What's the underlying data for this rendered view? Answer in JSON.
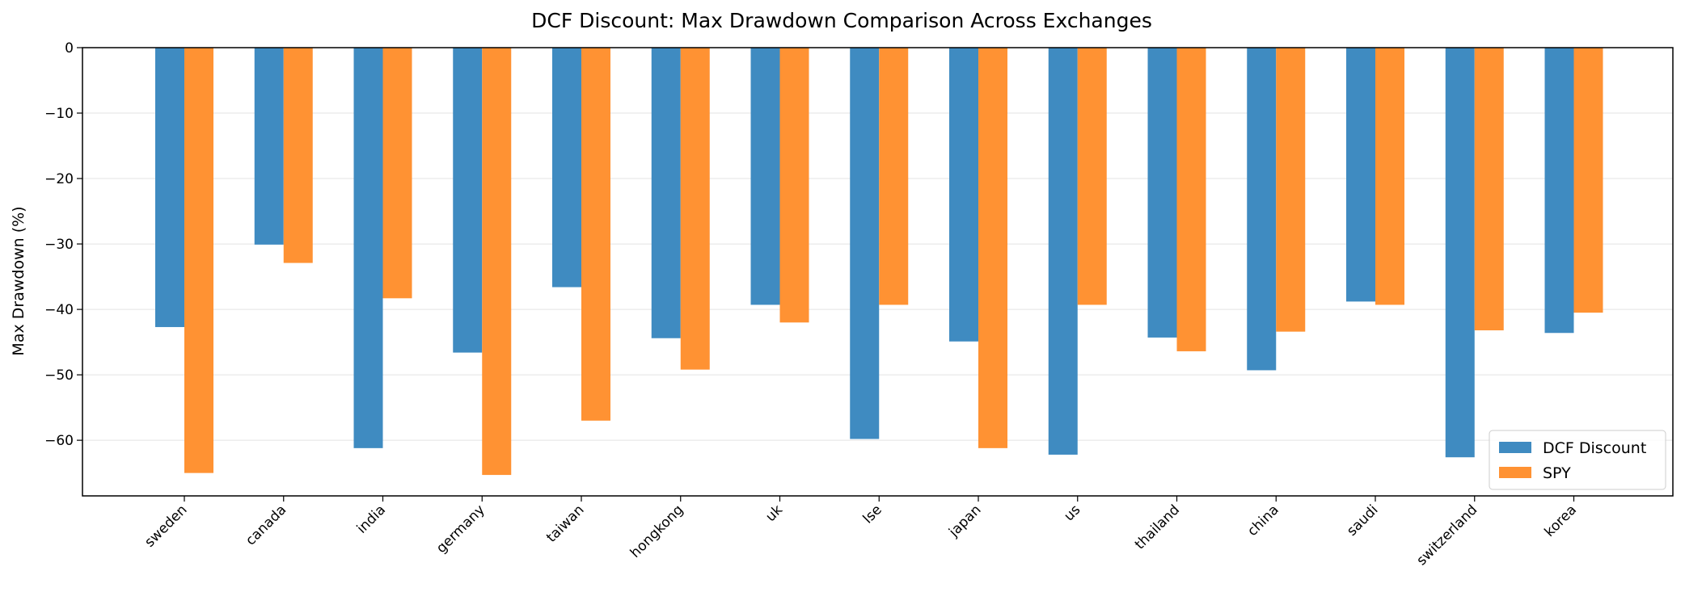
{
  "chart_data": {
    "type": "bar",
    "title": "DCF Discount: Max Drawdown Comparison Across Exchanges",
    "xlabel": "",
    "ylabel": "Max Drawdown (%)",
    "ylim": [
      -68.5,
      0
    ],
    "yticks": [
      0,
      -10,
      -20,
      -30,
      -40,
      -50,
      -60
    ],
    "grid": "y",
    "legend_position": "lower-right",
    "categories": [
      "sweden",
      "canada",
      "india",
      "germany",
      "taiwan",
      "hongkong",
      "uk",
      "lse",
      "japan",
      "us",
      "thailand",
      "china",
      "saudi",
      "switzerland",
      "korea"
    ],
    "series": [
      {
        "name": "DCF Discount",
        "color": "#3f8bc1",
        "values": [
          -42.7,
          -30.1,
          -61.2,
          -46.6,
          -36.6,
          -44.4,
          -39.3,
          -59.8,
          -44.9,
          -62.2,
          -44.3,
          -49.3,
          -38.8,
          -62.6,
          -43.6
        ]
      },
      {
        "name": "SPY",
        "color": "#ff9233",
        "values": [
          -65.0,
          -32.9,
          -38.3,
          -65.3,
          -57.0,
          -49.2,
          -42.0,
          -39.3,
          -61.2,
          -39.3,
          -46.4,
          -43.4,
          -39.3,
          -43.2,
          -40.5
        ]
      }
    ]
  }
}
